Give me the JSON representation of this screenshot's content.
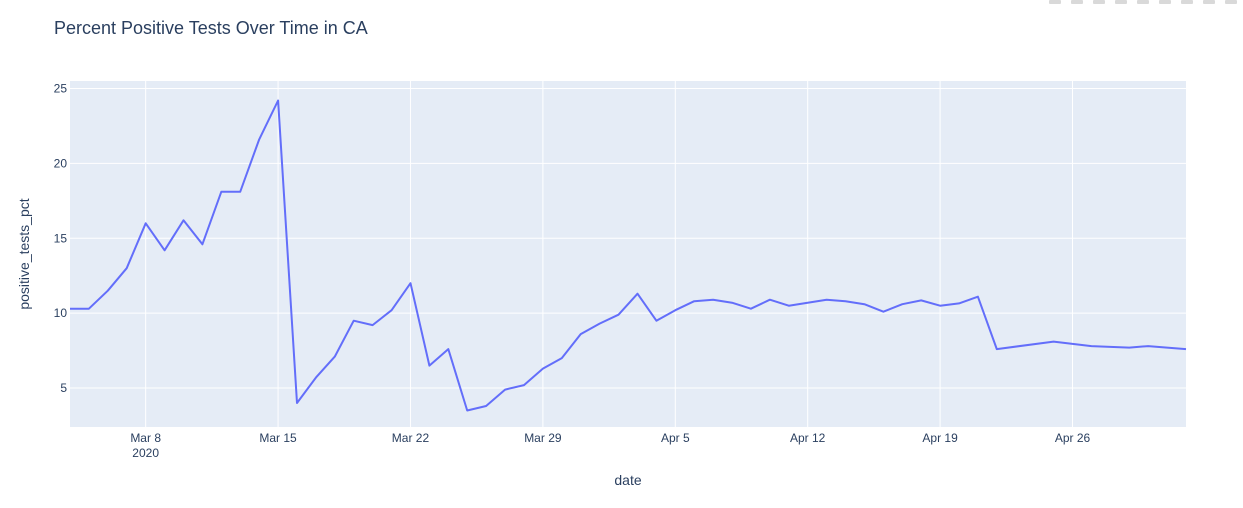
{
  "chart_data": {
    "type": "line",
    "title": "Percent Positive Tests Over Time in CA",
    "xlabel": "date",
    "ylabel": "positive_tests_pct",
    "x_start": "2020-03-04",
    "x_end": "2020-05-02",
    "ylim": [
      2.4,
      25.5
    ],
    "x_ticks": [
      {
        "date": "2020-03-08",
        "label": "Mar 8",
        "sublabel": "2020"
      },
      {
        "date": "2020-03-15",
        "label": "Mar 15"
      },
      {
        "date": "2020-03-22",
        "label": "Mar 22"
      },
      {
        "date": "2020-03-29",
        "label": "Mar 29"
      },
      {
        "date": "2020-04-05",
        "label": "Apr 5"
      },
      {
        "date": "2020-04-12",
        "label": "Apr 12"
      },
      {
        "date": "2020-04-19",
        "label": "Apr 19"
      },
      {
        "date": "2020-04-26",
        "label": "Apr 26"
      }
    ],
    "y_ticks": [
      5,
      10,
      15,
      20,
      25
    ],
    "grid": true,
    "line_color": "#636efa",
    "plot_bg": "#e5ecf6",
    "series": [
      {
        "x": [
          "2020-03-04",
          "2020-03-05",
          "2020-03-06",
          "2020-03-07",
          "2020-03-08",
          "2020-03-09",
          "2020-03-10",
          "2020-03-11",
          "2020-03-12",
          "2020-03-13",
          "2020-03-14",
          "2020-03-15",
          "2020-03-16",
          "2020-03-17",
          "2020-03-18",
          "2020-03-19",
          "2020-03-20",
          "2020-03-21",
          "2020-03-22",
          "2020-03-23",
          "2020-03-24",
          "2020-03-25",
          "2020-03-26",
          "2020-03-27",
          "2020-03-28",
          "2020-03-29",
          "2020-03-30",
          "2020-03-31",
          "2020-04-01",
          "2020-04-02",
          "2020-04-03",
          "2020-04-04",
          "2020-04-05",
          "2020-04-06",
          "2020-04-07",
          "2020-04-08",
          "2020-04-09",
          "2020-04-10",
          "2020-04-11",
          "2020-04-12",
          "2020-04-13",
          "2020-04-14",
          "2020-04-15",
          "2020-04-16",
          "2020-04-17",
          "2020-04-18",
          "2020-04-19",
          "2020-04-20",
          "2020-04-21",
          "2020-04-22",
          "2020-04-25",
          "2020-04-27",
          "2020-04-29",
          "2020-04-30",
          "2020-05-02"
        ],
        "y": [
          10.3,
          10.3,
          11.5,
          13.0,
          16.0,
          14.2,
          16.2,
          14.6,
          18.1,
          18.1,
          21.6,
          24.2,
          4.0,
          5.7,
          7.1,
          9.5,
          9.2,
          10.2,
          12.0,
          6.5,
          7.6,
          3.5,
          3.8,
          4.9,
          5.2,
          6.3,
          7.0,
          8.6,
          9.3,
          9.9,
          11.3,
          9.5,
          10.2,
          10.8,
          10.9,
          10.7,
          10.3,
          10.9,
          10.5,
          10.7,
          10.9,
          10.8,
          10.6,
          10.1,
          10.6,
          10.85,
          10.5,
          10.65,
          11.1,
          7.6,
          8.1,
          7.8,
          7.7,
          7.8,
          7.6
        ]
      }
    ]
  }
}
